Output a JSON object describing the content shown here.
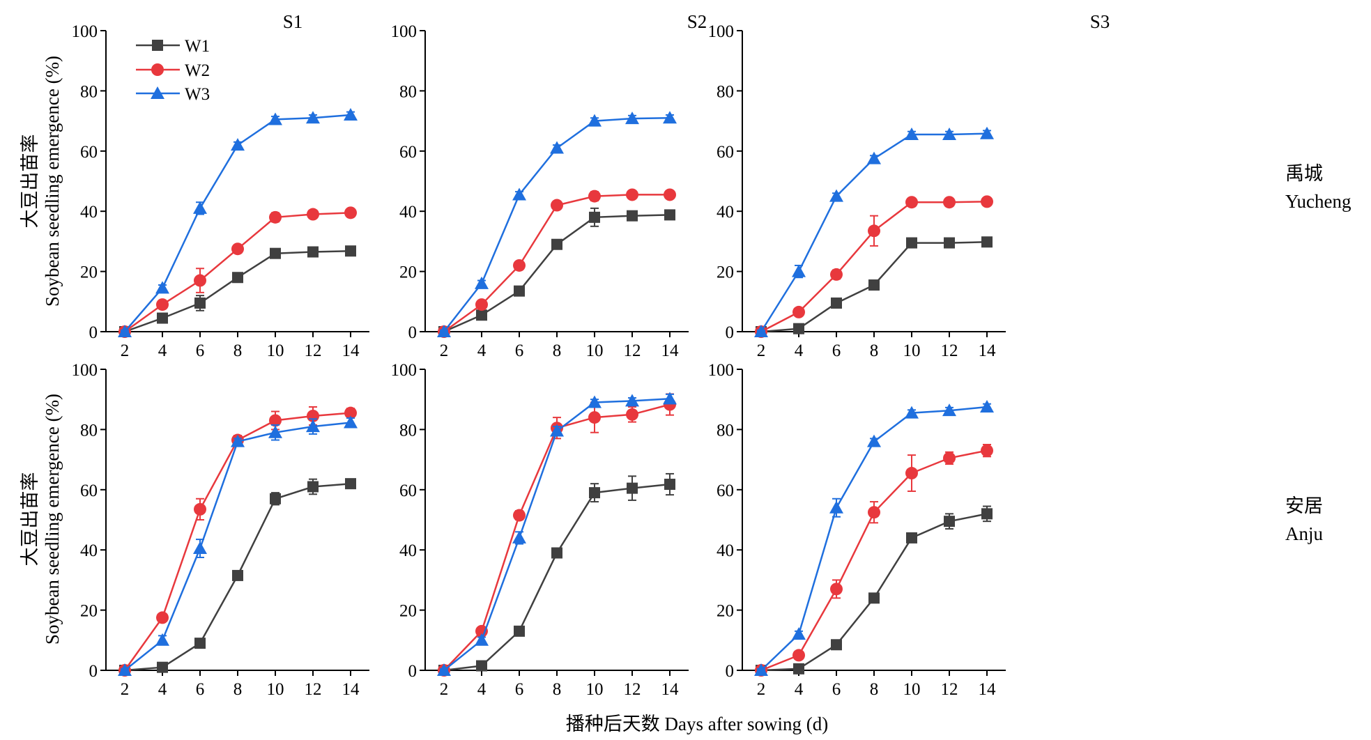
{
  "figure": {
    "x_axis_title": "播种后天数 Days after sowing (d)",
    "y_axis_title_cn": "大豆出苗率",
    "y_axis_title_en": "Soybean seedling emergence (%)",
    "column_titles": [
      "S1",
      "S2",
      "S3"
    ],
    "row_labels": [
      {
        "cn": "禹城",
        "en": "Yucheng"
      },
      {
        "cn": "安居",
        "en": "Anju"
      }
    ],
    "legend": [
      {
        "name": "W1",
        "color": "#404040",
        "marker": "square"
      },
      {
        "name": "W2",
        "color": "#e8383d",
        "marker": "circle"
      },
      {
        "name": "W3",
        "color": "#1f6fde",
        "marker": "triangle"
      }
    ]
  },
  "chart_data": [
    {
      "type": "line",
      "site": "Yucheng",
      "treatment": "S1",
      "x": [
        2,
        4,
        6,
        8,
        10,
        12,
        14
      ],
      "xlim": [
        1,
        15
      ],
      "ylim": [
        0,
        100
      ],
      "xticks": [
        2,
        4,
        6,
        8,
        10,
        12,
        14
      ],
      "yticks": [
        0,
        20,
        40,
        60,
        80,
        100
      ],
      "series": [
        {
          "name": "W1",
          "values": [
            0,
            4.5,
            9.5,
            18,
            26,
            26.5,
            26.8
          ],
          "errors": [
            1,
            1,
            2.5,
            1,
            1,
            1,
            1
          ]
        },
        {
          "name": "W2",
          "values": [
            0,
            9,
            17,
            27.5,
            38,
            39,
            39.5
          ],
          "errors": [
            0.5,
            1,
            4,
            1,
            1.5,
            1,
            1
          ]
        },
        {
          "name": "W3",
          "values": [
            0,
            14.5,
            41,
            62,
            70.5,
            71,
            72
          ],
          "errors": [
            0.5,
            1,
            2,
            1,
            1,
            1,
            1
          ]
        }
      ]
    },
    {
      "type": "line",
      "site": "Yucheng",
      "treatment": "S2",
      "x": [
        2,
        4,
        6,
        8,
        10,
        12,
        14
      ],
      "xlim": [
        1,
        15
      ],
      "ylim": [
        0,
        100
      ],
      "xticks": [
        2,
        4,
        6,
        8,
        10,
        12,
        14
      ],
      "yticks": [
        0,
        20,
        40,
        60,
        80,
        100
      ],
      "series": [
        {
          "name": "W1",
          "values": [
            0,
            5.5,
            13.5,
            29,
            38,
            38.5,
            38.8
          ],
          "errors": [
            1,
            1,
            1,
            1,
            3,
            1,
            1
          ]
        },
        {
          "name": "W2",
          "values": [
            0,
            9,
            22,
            42,
            45,
            45.5,
            45.5
          ],
          "errors": [
            0.5,
            1,
            1,
            1,
            1.5,
            1,
            1
          ]
        },
        {
          "name": "W3",
          "values": [
            0,
            16,
            45.5,
            61,
            70,
            70.8,
            71
          ],
          "errors": [
            0.5,
            1,
            1,
            1,
            1,
            1,
            1
          ]
        }
      ]
    },
    {
      "type": "line",
      "site": "Yucheng",
      "treatment": "S3",
      "x": [
        2,
        4,
        6,
        8,
        10,
        12,
        14
      ],
      "xlim": [
        1,
        15
      ],
      "ylim": [
        0,
        100
      ],
      "xticks": [
        2,
        4,
        6,
        8,
        10,
        12,
        14
      ],
      "yticks": [
        0,
        20,
        40,
        60,
        80,
        100
      ],
      "series": [
        {
          "name": "W1",
          "values": [
            0,
            1,
            9.5,
            15.5,
            29.5,
            29.5,
            29.8
          ],
          "errors": [
            0.5,
            0.5,
            1,
            1,
            1,
            1,
            1
          ]
        },
        {
          "name": "W2",
          "values": [
            0,
            6.5,
            19,
            33.5,
            43,
            43,
            43.2
          ],
          "errors": [
            0.5,
            1,
            1.5,
            5,
            1,
            1,
            1
          ]
        },
        {
          "name": "W3",
          "values": [
            0,
            20,
            45,
            57.5,
            65.5,
            65.5,
            65.8
          ],
          "errors": [
            0.5,
            2,
            1,
            1,
            1,
            1,
            1
          ]
        }
      ]
    },
    {
      "type": "line",
      "site": "Anju",
      "treatment": "S1",
      "x": [
        2,
        4,
        6,
        8,
        10,
        12,
        14
      ],
      "xlim": [
        1,
        15
      ],
      "ylim": [
        0,
        100
      ],
      "xticks": [
        2,
        4,
        6,
        8,
        10,
        12,
        14
      ],
      "yticks": [
        0,
        20,
        40,
        60,
        80,
        100
      ],
      "series": [
        {
          "name": "W1",
          "values": [
            0,
            1,
            9,
            31.5,
            57,
            61,
            62
          ],
          "errors": [
            0.5,
            0.5,
            1,
            1,
            2,
            2.5,
            1.5
          ]
        },
        {
          "name": "W2",
          "values": [
            0,
            17.5,
            53.5,
            76.5,
            83,
            84.5,
            85.5
          ],
          "errors": [
            0.5,
            1,
            3.5,
            1.5,
            3,
            3,
            1.5
          ]
        },
        {
          "name": "W3",
          "values": [
            0,
            10,
            40.5,
            76,
            79,
            81,
            82.3
          ],
          "errors": [
            0.5,
            1.5,
            3,
            1,
            2.5,
            2.5,
            1.5
          ]
        }
      ]
    },
    {
      "type": "line",
      "site": "Anju",
      "treatment": "S2",
      "x": [
        2,
        4,
        6,
        8,
        10,
        12,
        14
      ],
      "xlim": [
        1,
        15
      ],
      "ylim": [
        0,
        100
      ],
      "xticks": [
        2,
        4,
        6,
        8,
        10,
        12,
        14
      ],
      "yticks": [
        0,
        20,
        40,
        60,
        80,
        100
      ],
      "series": [
        {
          "name": "W1",
          "values": [
            0,
            1.5,
            13,
            39,
            59,
            60.5,
            61.8
          ],
          "errors": [
            0.5,
            0.5,
            1,
            1,
            3,
            4,
            3.5
          ]
        },
        {
          "name": "W2",
          "values": [
            0,
            13,
            51.5,
            80.5,
            84,
            85,
            88.3
          ],
          "errors": [
            0.5,
            1,
            1.5,
            3.5,
            5,
            2.5,
            3.5
          ]
        },
        {
          "name": "W3",
          "values": [
            0,
            10,
            44,
            79.5,
            89,
            89.5,
            90.2
          ],
          "errors": [
            0.5,
            1,
            2,
            1.5,
            1,
            1,
            1.5
          ]
        }
      ]
    },
    {
      "type": "line",
      "site": "Anju",
      "treatment": "S3",
      "x": [
        2,
        4,
        6,
        8,
        10,
        12,
        14
      ],
      "xlim": [
        1,
        15
      ],
      "ylim": [
        0,
        100
      ],
      "xticks": [
        2,
        4,
        6,
        8,
        10,
        12,
        14
      ],
      "yticks": [
        0,
        20,
        40,
        60,
        80,
        100
      ],
      "series": [
        {
          "name": "W1",
          "values": [
            0,
            0.5,
            8.5,
            24,
            44,
            49.5,
            52
          ],
          "errors": [
            0.5,
            0.5,
            1,
            1,
            1.5,
            2.5,
            2.5
          ]
        },
        {
          "name": "W2",
          "values": [
            0,
            5,
            27,
            52.5,
            65.5,
            70.5,
            73
          ],
          "errors": [
            0.5,
            1,
            3,
            3.5,
            6,
            2,
            2
          ]
        },
        {
          "name": "W3",
          "values": [
            0,
            12,
            54,
            76,
            85.5,
            86.3,
            87.5
          ],
          "errors": [
            0.5,
            1,
            3,
            1,
            1,
            1,
            1
          ]
        }
      ]
    }
  ]
}
